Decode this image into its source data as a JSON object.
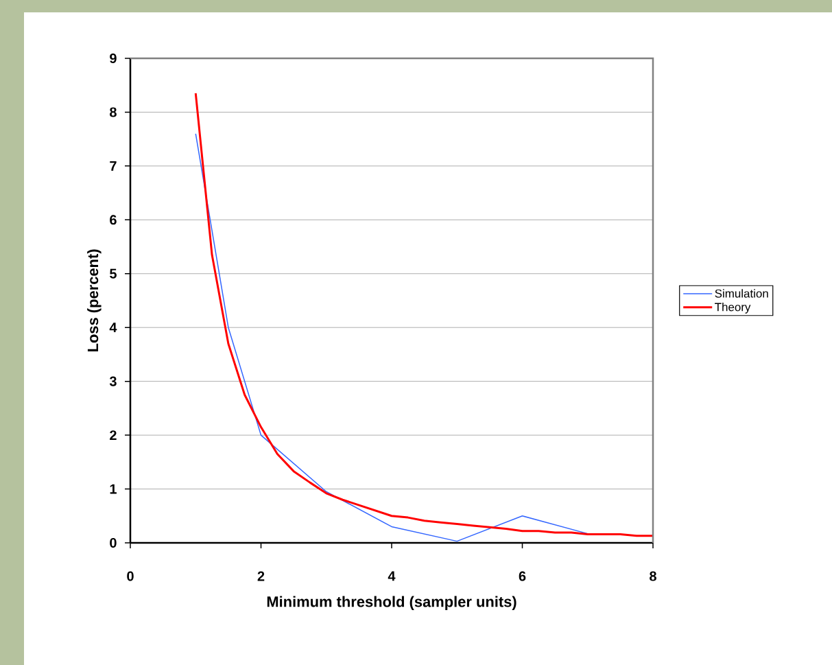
{
  "chart_data": {
    "type": "line",
    "xlabel": "Minimum threshold (sampler units)",
    "ylabel": "Loss (percent)",
    "xlim": [
      0,
      8
    ],
    "xticks": [
      0,
      2,
      4,
      6,
      8
    ],
    "ylim": [
      0,
      9
    ],
    "yticks": [
      0,
      1,
      2,
      3,
      4,
      5,
      6,
      7,
      8,
      9
    ],
    "grid": "y",
    "legend": "right",
    "series": [
      {
        "name": "Simulation",
        "color": "#3366ff",
        "x": [
          1,
          1.5,
          2,
          3,
          4,
          5,
          6,
          7
        ],
        "values": [
          7.6,
          4.0,
          2.0,
          0.95,
          0.3,
          0.03,
          0.5,
          0.17
        ]
      },
      {
        "name": "Theory",
        "color": "#ff0000",
        "x": [
          1,
          1.25,
          1.5,
          1.75,
          2,
          2.25,
          2.5,
          2.75,
          3,
          3.25,
          3.5,
          3.75,
          4,
          4.25,
          4.5,
          4.75,
          5,
          5.25,
          5.5,
          5.75,
          6,
          6.25,
          6.5,
          6.75,
          7,
          7.25,
          7.5,
          7.75,
          8
        ],
        "values": [
          8.35,
          5.35,
          3.7,
          2.75,
          2.15,
          1.65,
          1.33,
          1.12,
          0.92,
          0.8,
          0.7,
          0.6,
          0.5,
          0.47,
          0.41,
          0.38,
          0.35,
          0.32,
          0.29,
          0.26,
          0.22,
          0.22,
          0.19,
          0.19,
          0.16,
          0.16,
          0.16,
          0.13,
          0.13
        ]
      }
    ]
  }
}
